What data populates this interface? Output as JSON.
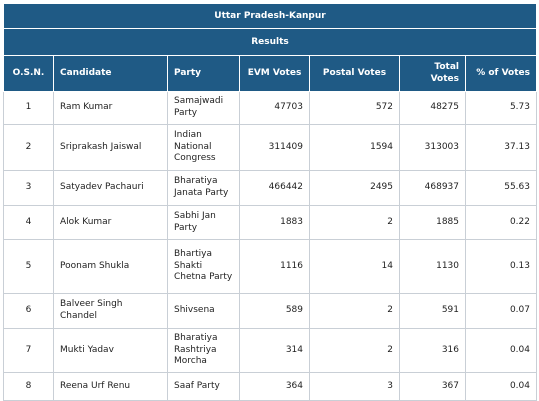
{
  "header": {
    "title": "Uttar Pradesh-Kanpur",
    "subtitle": "Results"
  },
  "columns": {
    "osn": "O.S.N.",
    "candidate": "Candidate",
    "party": "Party",
    "evm": "EVM Votes",
    "postal": "Postal Votes",
    "total": "Total Votes",
    "percent": "% of Votes"
  },
  "rows": [
    {
      "osn": "1",
      "candidate": "Ram Kumar",
      "party": "Samajwadi Party",
      "evm": "47703",
      "postal": "572",
      "total": "48275",
      "percent": "5.73"
    },
    {
      "osn": "2",
      "candidate": "Sriprakash Jaiswal",
      "party": "Indian National Congress",
      "evm": "311409",
      "postal": "1594",
      "total": "313003",
      "percent": "37.13"
    },
    {
      "osn": "3",
      "candidate": "Satyadev Pachauri",
      "party": "Bharatiya Janata Party",
      "evm": "466442",
      "postal": "2495",
      "total": "468937",
      "percent": "55.63"
    },
    {
      "osn": "4",
      "candidate": "Alok Kumar",
      "party": "Sabhi Jan Party",
      "evm": "1883",
      "postal": "2",
      "total": "1885",
      "percent": "0.22"
    },
    {
      "osn": "5",
      "candidate": "Poonam Shukla",
      "party": "Bhartiya Shakti Chetna Party",
      "evm": "1116",
      "postal": "14",
      "total": "1130",
      "percent": "0.13"
    },
    {
      "osn": "6",
      "candidate": "Balveer Singh Chandel",
      "party": "Shivsena",
      "evm": "589",
      "postal": "2",
      "total": "591",
      "percent": "0.07"
    },
    {
      "osn": "7",
      "candidate": "Mukti Yadav",
      "party": "Bharatiya Rashtriya Morcha",
      "evm": "314",
      "postal": "2",
      "total": "316",
      "percent": "0.04"
    },
    {
      "osn": "8",
      "candidate": "Reena Urf Renu",
      "party": "Saaf Party",
      "evm": "364",
      "postal": "3",
      "total": "367",
      "percent": "0.04"
    }
  ]
}
